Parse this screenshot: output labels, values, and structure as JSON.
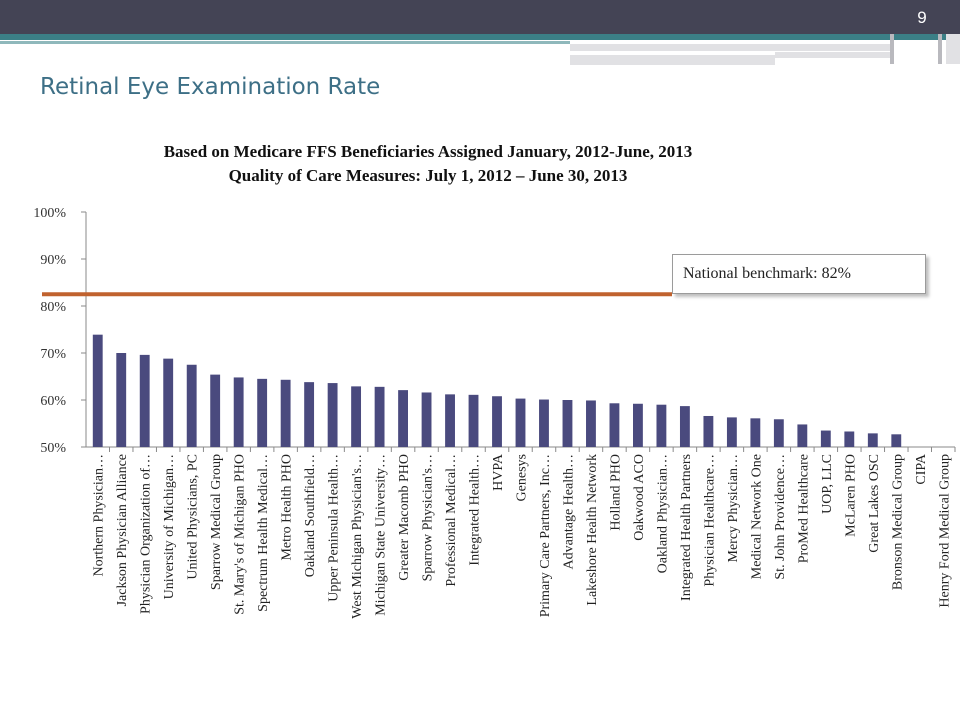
{
  "slide": {
    "page_number": "9",
    "title": "Retinal Eye Examination Rate"
  },
  "colors": {
    "bar": "#4a4a7e",
    "benchmark_line": "#c0622e",
    "title_text": "#3d6f86",
    "header_band": "#444455",
    "accent_teal": "#3b7f86"
  },
  "benchmark": {
    "label": "National benchmark: 82%",
    "value": 82.5
  },
  "chart_data": {
    "type": "bar",
    "title": "Based on Medicare FFS Beneficiaries Assigned January, 2012-June, 2013",
    "subtitle": "Quality of Care Measures: July 1, 2012 – June 30, 2013",
    "xlabel": "",
    "ylabel": "",
    "ylim": [
      50,
      100
    ],
    "yticks": [
      50,
      60,
      70,
      80,
      90,
      100
    ],
    "ytick_labels": [
      "50%",
      "60%",
      "70%",
      "80%",
      "90%",
      "100%"
    ],
    "grid": false,
    "legend": "none",
    "categories": [
      "Northern Physician…",
      "Jackson Physician Alliance",
      "Physician Organization of…",
      "University of Michigan…",
      "United Physicians, PC",
      "Sparrow Medical Group",
      "St. Mary's of Michigan PHO",
      "Spectrum Health Medical…",
      "Metro Health PHO",
      "Oakland Southfield…",
      "Upper Peninsula Health…",
      "West Michigan Physician's…",
      "Michigan State University…",
      "Greater Macomb PHO",
      "Sparrow Physician's…",
      "Professional Medical…",
      "Integrated Health…",
      "HVPA",
      "Genesys",
      "Primary Care Partners, Inc…",
      "Advantage Health…",
      "Lakeshore Health Network",
      "Holland PHO",
      "Oakwood ACO",
      "Oakland Physician…",
      "Integrated Health Partners",
      "Physician Healthcare…",
      "Mercy Physician…",
      "Medical Network One",
      "St. John Providence…",
      "ProMed Healthcare",
      "UOP, LLC",
      "McLaren PHO",
      "Great Lakes OSC",
      "Bronson Medical Group",
      "CIPA",
      "Henry Ford Medical Group"
    ],
    "values": [
      73.9,
      70.0,
      69.6,
      68.8,
      67.5,
      65.4,
      64.8,
      64.5,
      64.3,
      63.8,
      63.6,
      62.9,
      62.8,
      62.1,
      61.6,
      61.2,
      61.1,
      60.8,
      60.3,
      60.1,
      60.0,
      59.9,
      59.3,
      59.2,
      59.0,
      58.7,
      56.6,
      56.3,
      56.1,
      55.9,
      54.8,
      53.5,
      53.3,
      52.9,
      52.7,
      null,
      null
    ]
  }
}
